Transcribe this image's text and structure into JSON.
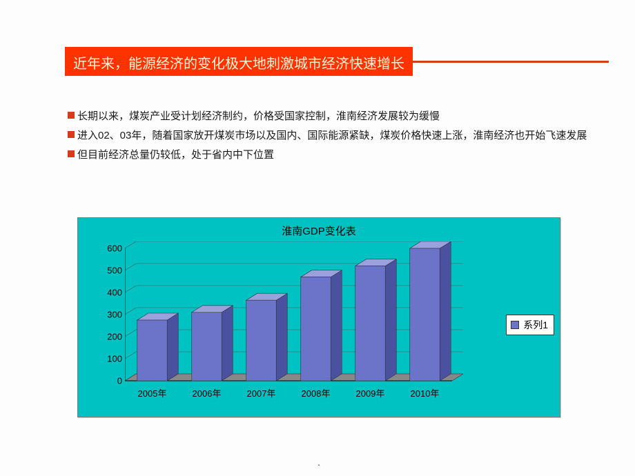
{
  "header": {
    "title": "近年来，能源经济的变化极大地刺激城市经济快速增长"
  },
  "bullets": [
    "长期以来，煤炭产业受计划经济制约，价格受国家控制，淮南经济发展较为缓慢",
    "进入02、03年，随着国家放开煤炭市场以及国内、国际能源紧缺，煤炭价格快速上涨，淮南经济也开始飞速发展",
    "但目前经济总量仍较低，处于省内中下位置"
  ],
  "chart": {
    "type": "bar",
    "title": "淮南GDP变化表",
    "background_color": "#00c2c2",
    "categories": [
      "2005年",
      "2006年",
      "2007年",
      "2008年",
      "2009年",
      "2010年"
    ],
    "values": [
      275,
      310,
      365,
      470,
      520,
      600
    ],
    "bar_color_front": "#6b74c9",
    "bar_color_top": "#9aa1dd",
    "bar_color_side": "#4a52a0",
    "ylim": [
      0,
      600
    ],
    "ytick_step": 100,
    "grid_color": "#555555",
    "floor_color": "#888888",
    "legend_label": "系列1",
    "axis_fontsize": 13,
    "title_fontsize": 15
  }
}
